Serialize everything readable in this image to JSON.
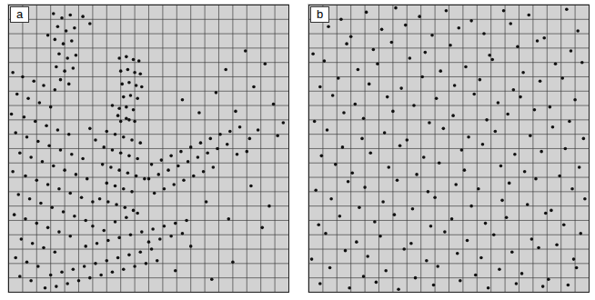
{
  "chart_data": [
    {
      "type": "scatter",
      "title": "a",
      "color": "#111111",
      "grid": true,
      "tick_labels": false,
      "xlim": [
        0,
        20
      ],
      "ylim": [
        0,
        20
      ],
      "xticks": [
        0,
        1,
        2,
        3,
        4,
        5,
        6,
        7,
        8,
        9,
        10,
        11,
        12,
        13,
        14,
        15,
        16,
        17,
        18,
        19,
        20
      ],
      "yticks": [
        0,
        1,
        2,
        3,
        4,
        5,
        6,
        7,
        8,
        9,
        10,
        11,
        12,
        13,
        14,
        15,
        16,
        17,
        18,
        19,
        20
      ],
      "x": [
        3.2,
        3.8,
        4.4,
        3.5,
        4.1,
        4.7,
        3.3,
        3.9,
        4.5,
        3.6,
        4.2,
        4.8,
        3.4,
        4.0,
        4.6,
        3.7,
        4.3,
        5.3,
        5.8,
        2.8,
        7.9,
        8.4,
        8.9,
        9.3,
        8.0,
        8.5,
        9.0,
        9.4,
        8.1,
        8.6,
        9.1,
        9.5,
        8.2,
        8.7,
        9.2,
        7.9,
        8.4,
        8.9,
        8.0,
        8.6,
        0.3,
        1.0,
        1.8,
        2.5,
        3.3,
        0.6,
        1.4,
        2.2,
        3.0,
        0.2,
        1.1,
        1.9,
        2.7,
        3.5,
        4.3,
        0.5,
        1.3,
        2.1,
        2.9,
        3.7,
        4.5,
        5.3,
        0.8,
        1.6,
        2.4,
        3.2,
        4.0,
        4.8,
        5.6,
        0.3,
        1.2,
        2.0,
        2.8,
        3.6,
        4.4,
        5.2,
        6.0,
        0.7,
        1.5,
        2.3,
        3.1,
        3.9,
        4.7,
        5.5,
        0.4,
        1.2,
        2.0,
        2.8,
        3.6,
        4.4,
        0.9,
        1.7,
        2.5,
        3.3,
        0.5,
        1.3,
        2.1,
        0.8,
        1.6,
        5.8,
        7.0,
        7.6,
        8.2,
        8.8,
        9.4,
        6.8,
        7.4,
        8.0,
        8.6,
        9.2,
        6.7,
        7.3,
        7.9,
        8.5,
        9.1,
        9.7,
        7.0,
        7.6,
        8.2,
        8.8,
        6.5,
        7.1,
        7.7,
        8.3,
        8.9,
        7.8,
        8.4,
        9.0,
        6.2,
        7.4,
        10.2,
        10.9,
        11.6,
        12.3,
        13.0,
        13.7,
        14.4,
        15.1,
        15.8,
        16.5,
        10.0,
        10.7,
        11.4,
        12.1,
        12.8,
        13.5,
        14.2,
        14.9,
        15.6,
        17.2,
        10.4,
        11.1,
        11.8,
        12.5,
        13.2,
        13.9,
        14.6,
        16.3,
        17.8,
        19.2,
        3.0,
        3.8,
        4.6,
        5.4,
        6.2,
        7.0,
        7.8,
        8.6,
        9.4,
        10.2,
        3.4,
        4.2,
        5.0,
        5.8,
        6.6,
        7.4,
        8.2,
        9.0,
        9.8,
        10.6,
        5.5,
        6.3,
        7.1,
        7.9,
        8.7,
        9.5,
        10.3,
        11.1,
        11.9,
        12.7,
        6.0,
        6.8,
        7.6,
        8.4,
        9.2,
        10.0,
        10.8,
        11.6,
        12.4,
        2.6,
        14.8,
        16.2,
        17.5,
        18.9,
        19.6,
        15.5,
        16.9,
        18.3,
        13.6,
        12.4,
        14.1,
        15.7,
        17.3,
        18.6,
        13.0,
        16.0,
        18.1,
        14.5,
        11.9,
        17.0
      ],
      "values": [
        19.4,
        19.1,
        19.3,
        18.5,
        18.2,
        18.4,
        17.6,
        17.3,
        17.5,
        16.6,
        16.3,
        16.5,
        15.7,
        15.4,
        15.6,
        14.8,
        14.5,
        19.2,
        18.7,
        17.9,
        16.3,
        16.4,
        16.2,
        16.1,
        15.4,
        15.5,
        15.3,
        15.2,
        14.5,
        14.6,
        14.4,
        14.3,
        13.6,
        13.7,
        13.5,
        12.8,
        12.9,
        12.7,
        11.9,
        12.0,
        15.3,
        15.0,
        14.7,
        14.4,
        14.1,
        13.8,
        13.5,
        13.2,
        12.9,
        12.4,
        12.2,
        11.9,
        11.6,
        11.3,
        11.0,
        11.1,
        10.8,
        10.5,
        10.2,
        9.9,
        9.6,
        9.3,
        9.7,
        9.4,
        9.1,
        8.8,
        8.5,
        8.2,
        7.9,
        8.4,
        8.1,
        7.8,
        7.5,
        7.2,
        6.9,
        6.6,
        6.3,
        6.8,
        6.5,
        6.2,
        5.9,
        5.6,
        5.3,
        5.0,
        5.4,
        5.1,
        4.8,
        4.5,
        4.2,
        3.9,
        3.7,
        3.4,
        3.1,
        2.8,
        2.4,
        2.1,
        1.8,
        1.1,
        0.8,
        11.4,
        11.2,
        11.0,
        10.8,
        10.6,
        10.4,
        10.1,
        9.9,
        9.7,
        9.5,
        9.3,
        8.9,
        8.7,
        8.5,
        8.3,
        8.1,
        7.9,
        7.6,
        7.4,
        7.2,
        7.0,
        6.5,
        6.3,
        6.1,
        5.9,
        5.7,
        12.3,
        12.1,
        11.9,
        10.6,
        13.0,
        8.9,
        9.2,
        9.5,
        9.8,
        10.1,
        10.4,
        10.7,
        11.0,
        11.2,
        11.5,
        7.9,
        8.2,
        8.5,
        8.8,
        9.1,
        9.4,
        9.7,
        10.0,
        10.3,
        10.7,
        6.9,
        7.2,
        7.5,
        7.8,
        8.1,
        8.4,
        8.7,
        9.6,
        11.3,
        10.9,
        1.2,
        1.4,
        1.6,
        1.8,
        2.0,
        2.2,
        2.4,
        2.6,
        2.8,
        3.0,
        0.4,
        0.6,
        0.8,
        1.0,
        1.2,
        1.4,
        1.6,
        1.8,
        2.0,
        2.2,
        3.2,
        3.4,
        3.6,
        3.8,
        4.0,
        4.2,
        4.4,
        4.6,
        4.8,
        5.0,
        4.6,
        4.3,
        4.9,
        5.2,
        5.5,
        3.5,
        3.7,
        3.9,
        4.1,
        0.3,
        13.9,
        12.6,
        14.3,
        13.1,
        11.8,
        15.5,
        16.8,
        15.9,
        12.5,
        13.4,
        6.3,
        5.1,
        7.4,
        6.0,
        3.2,
        2.1,
        4.5,
        0.9,
        1.5,
        9.8
      ]
    },
    {
      "type": "scatter",
      "title": "b",
      "color": "#111111",
      "grid": true,
      "tick_labels": false,
      "xlim": [
        0,
        20
      ],
      "ylim": [
        0,
        20
      ],
      "xticks": [
        0,
        1,
        2,
        3,
        4,
        5,
        6,
        7,
        8,
        9,
        10,
        11,
        12,
        13,
        14,
        15,
        16,
        17,
        18,
        19,
        20
      ],
      "yticks": [
        0,
        1,
        2,
        3,
        4,
        5,
        6,
        7,
        8,
        9,
        10,
        11,
        12,
        13,
        14,
        15,
        16,
        17,
        18,
        19,
        20
      ],
      "x": [
        0.6,
        2.3,
        4.1,
        6.2,
        7.9,
        9.8,
        11.6,
        13.9,
        15.7,
        18.4,
        1.4,
        3.0,
        5.2,
        6.9,
        8.8,
        10.7,
        12.5,
        14.4,
        16.8,
        19.2,
        0.3,
        2.7,
        4.6,
        5.9,
        8.3,
        10.1,
        12.9,
        14.9,
        16.3,
        18.7,
        1.1,
        3.5,
        4.9,
        7.2,
        9.4,
        11.2,
        13.1,
        15.3,
        17.6,
        19.5,
        0.8,
        2.1,
        4.3,
        6.6,
        8.1,
        10.4,
        12.2,
        14.6,
        16.5,
        18.1,
        1.7,
        3.3,
        5.6,
        7.5,
        9.1,
        11.8,
        13.5,
        15.1,
        17.2,
        19.0,
        0.4,
        2.5,
        3.9,
        6.0,
        8.6,
        10.3,
        12.7,
        14.2,
        16.1,
        18.6,
        1.3,
        3.8,
        5.4,
        7.0,
        9.6,
        11.4,
        13.3,
        15.8,
        17.4,
        19.6,
        0.9,
        2.4,
        4.4,
        6.5,
        8.2,
        10.9,
        12.4,
        14.7,
        16.6,
        18.3,
        1.9,
        3.1,
        5.7,
        7.7,
        9.3,
        11.1,
        13.7,
        15.4,
        17.9,
        19.3,
        0.5,
        2.8,
        4.0,
        6.3,
        8.5,
        10.5,
        12.1,
        14.3,
        16.2,
        18.8,
        1.6,
        3.6,
        5.3,
        7.4,
        9.0,
        11.6,
        13.8,
        15.6,
        17.3,
        19.7,
        0.7,
        2.2,
        4.7,
        6.1,
        8.7,
        10.2,
        12.6,
        14.1,
        16.9,
        18.2,
        1.2,
        3.4,
        5.1,
        7.3,
        9.7,
        11.3,
        13.2,
        15.9,
        17.7,
        19.4,
        0.2,
        2.6,
        4.2,
        6.8,
        8.4,
        10.6,
        12.3,
        14.5,
        16.4,
        18.9,
        1.5,
        3.9,
        5.5,
        7.6,
        9.2,
        11.9,
        13.6,
        15.2,
        17.1,
        19.1,
        0.8,
        2.9,
        4.8,
        6.4,
        8.9,
        10.8,
        12.8,
        14.8,
        16.7,
        18.5
      ],
      "values": [
        19.7,
        19.0,
        19.5,
        19.8,
        19.2,
        19.6,
        18.9,
        19.6,
        19.3,
        19.7,
        18.5,
        17.8,
        18.3,
        18.6,
        17.9,
        18.4,
        18.0,
        18.7,
        17.7,
        18.2,
        16.6,
        17.3,
        16.9,
        17.4,
        16.7,
        17.2,
        16.5,
        17.1,
        17.5,
        16.8,
        16.1,
        15.5,
        15.9,
        16.3,
        15.4,
        15.7,
        16.2,
        15.3,
        15.9,
        16.0,
        14.3,
        14.9,
        14.5,
        14.2,
        15.0,
        14.4,
        14.8,
        14.1,
        14.7,
        14.9,
        13.7,
        13.1,
        13.6,
        13.0,
        13.5,
        13.8,
        13.2,
        13.6,
        12.9,
        13.4,
        11.9,
        12.5,
        12.1,
        12.6,
        11.8,
        12.3,
        12.0,
        12.4,
        12.7,
        11.9,
        11.3,
        10.7,
        11.1,
        10.6,
        11.4,
        10.8,
        11.2,
        10.9,
        11.5,
        10.7,
        9.5,
        10.1,
        9.7,
        10.2,
        9.4,
        9.9,
        10.3,
        9.6,
        9.8,
        10.0,
        8.9,
        8.3,
        8.7,
        8.2,
        9.0,
        8.5,
        8.8,
        8.4,
        8.1,
        8.7,
        7.1,
        7.7,
        7.3,
        7.8,
        7.0,
        7.5,
        7.2,
        7.6,
        7.9,
        7.2,
        6.5,
        5.9,
        6.3,
        5.8,
        6.6,
        6.0,
        6.4,
        6.1,
        5.7,
        6.5,
        4.7,
        5.3,
        4.9,
        5.4,
        4.6,
        5.1,
        4.8,
        5.2,
        5.5,
        4.7,
        4.1,
        3.5,
        3.9,
        3.4,
        4.2,
        3.6,
        4.0,
        3.7,
        3.3,
        4.1,
        2.3,
        2.9,
        2.5,
        3.0,
        2.2,
        2.7,
        2.4,
        2.8,
        3.1,
        2.3,
        1.7,
        1.1,
        1.5,
        1.0,
        1.8,
        1.2,
        1.6,
        1.3,
        0.9,
        1.7,
        0.6,
        0.3,
        0.7,
        0.2,
        0.5,
        0.8,
        0.3,
        0.6,
        0.4,
        0.5
      ]
    }
  ]
}
